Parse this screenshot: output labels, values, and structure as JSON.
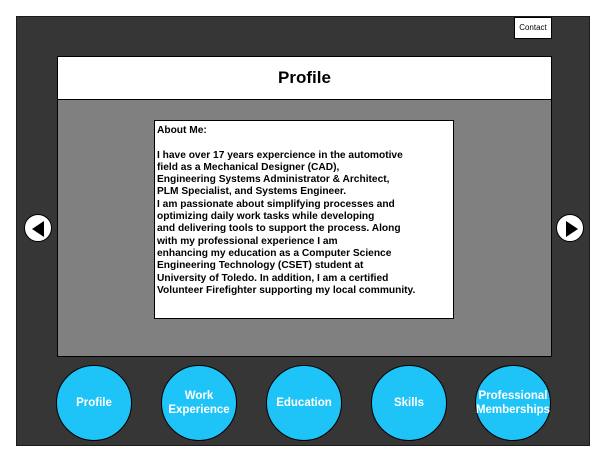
{
  "header": {
    "contact_label": "Contact",
    "page_title": "Profile"
  },
  "about": {
    "heading": "About Me:",
    "lines": [
      "I have over 17 years expercience in the automotive",
      "field as a Mechanical Designer (CAD),",
      "Engineering Systems Administrator & Architect,",
      "PLM Specialist, and Systems Engineer.",
      "I am passionate about simplifying processes and",
      "optimizing daily work tasks while developing",
      "and delivering tools to support the process. Along",
      "with my professional experience I am",
      "enhancing my education as a Computer Science",
      "Engineering Technology (CSET) student at",
      "University of Toledo. In addition, I am a certified",
      "Volunteer Firefighter supporting my local community."
    ]
  },
  "nav": {
    "items": [
      {
        "label": "Profile"
      },
      {
        "label": "Work\nExperience"
      },
      {
        "label": "Education"
      },
      {
        "label": "Skills"
      },
      {
        "label": "Professional\nMemberships"
      }
    ]
  },
  "icons": {
    "prev": "arrow-left-icon",
    "next": "arrow-right-icon"
  },
  "colors": {
    "frame": "#363636",
    "panel": "#808080",
    "nav_circle": "#1ec4f7",
    "nav_text": "#ffffff"
  }
}
